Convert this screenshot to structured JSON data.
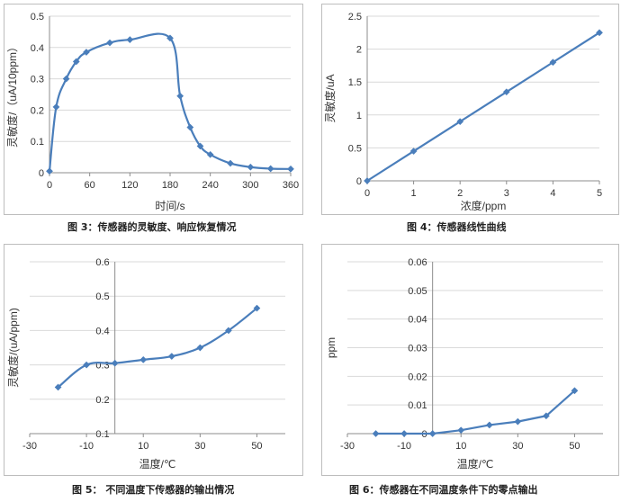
{
  "chart_data": [
    {
      "type": "line",
      "title": "",
      "xlabel": "时间/s",
      "ylabel": "灵敏度/（uA/10ppm）",
      "xlim": [
        0,
        360
      ],
      "ylim": [
        0,
        0.5
      ],
      "xticks": [
        0,
        60,
        120,
        180,
        240,
        300,
        360
      ],
      "yticks": [
        0,
        0.1,
        0.2,
        0.3,
        0.4,
        0.5
      ],
      "ytick_labels": [
        "0",
        "0.1",
        "0.2",
        "0.3",
        "0.4",
        "0.5"
      ],
      "grid": "horizontal",
      "color": "#4a7ebb",
      "smooth": true,
      "series": [
        {
          "x": [
            0,
            10,
            25,
            40,
            55,
            90,
            120,
            180,
            195,
            210,
            225,
            240,
            270,
            300,
            330,
            360
          ],
          "y": [
            0.005,
            0.21,
            0.3,
            0.355,
            0.385,
            0.415,
            0.425,
            0.43,
            0.245,
            0.145,
            0.085,
            0.058,
            0.03,
            0.018,
            0.013,
            0.012
          ]
        }
      ],
      "caption": "图 3：传感器的灵敏度、响应恢复情况"
    },
    {
      "type": "line",
      "title": "",
      "xlabel": "浓度/ppm",
      "ylabel": "灵敏度/uA",
      "xlim": [
        0,
        5
      ],
      "ylim": [
        0,
        2.5
      ],
      "xticks": [
        0,
        1,
        2,
        3,
        4,
        5
      ],
      "yticks": [
        0,
        0.5,
        1,
        1.5,
        2,
        2.5
      ],
      "ytick_labels": [
        "0",
        "0.5",
        "1",
        "1.5",
        "2",
        "2.5"
      ],
      "grid": "horizontal",
      "color": "#4a7ebb",
      "smooth": false,
      "series": [
        {
          "x": [
            0,
            1,
            2,
            3,
            4,
            5
          ],
          "y": [
            0,
            0.45,
            0.9,
            1.35,
            1.8,
            2.25
          ]
        }
      ],
      "caption": "图 4：传感器线性曲线"
    },
    {
      "type": "line",
      "title": "",
      "xlabel": "温度/℃",
      "ylabel": "灵敏度/(uA/ppm)",
      "xlim": [
        -30,
        60
      ],
      "ylim": [
        0.1,
        0.6
      ],
      "xticks": [
        -30,
        -10,
        10,
        30,
        50
      ],
      "yticks": [
        0.1,
        0.2,
        0.3,
        0.4,
        0.5,
        0.6
      ],
      "ytick_labels": [
        "0.1",
        "0.2",
        "0.3",
        "0.4",
        "0.5",
        "0.6"
      ],
      "grid": "horizontal",
      "color": "#4a7ebb",
      "smooth": true,
      "series": [
        {
          "x": [
            -20,
            -10,
            0,
            10,
            20,
            30,
            40,
            50
          ],
          "y": [
            0.235,
            0.3,
            0.305,
            0.315,
            0.325,
            0.35,
            0.4,
            0.465
          ]
        }
      ],
      "caption": "图 5：  不同温度下传感器的输出情况"
    },
    {
      "type": "line",
      "title": "",
      "xlabel": "温度/℃",
      "ylabel": "ppm",
      "xlim": [
        -30,
        60
      ],
      "ylim": [
        0,
        0.06
      ],
      "xticks": [
        -30,
        -10,
        10,
        30,
        50
      ],
      "yticks": [
        0,
        0.01,
        0.02,
        0.03,
        0.04,
        0.05,
        0.06
      ],
      "ytick_labels": [
        "0",
        "0.01",
        "0.02",
        "0.03",
        "0.04",
        "0.05",
        "0.06"
      ],
      "grid": "horizontal",
      "color": "#4a7ebb",
      "smooth": false,
      "series": [
        {
          "x": [
            -20,
            -10,
            0,
            10,
            20,
            30,
            40,
            50
          ],
          "y": [
            0,
            0,
            0,
            0.0012,
            0.003,
            0.0042,
            0.0062,
            0.015
          ]
        }
      ],
      "caption": "图 6：传感器在不同温度条件下的零点输出"
    }
  ]
}
